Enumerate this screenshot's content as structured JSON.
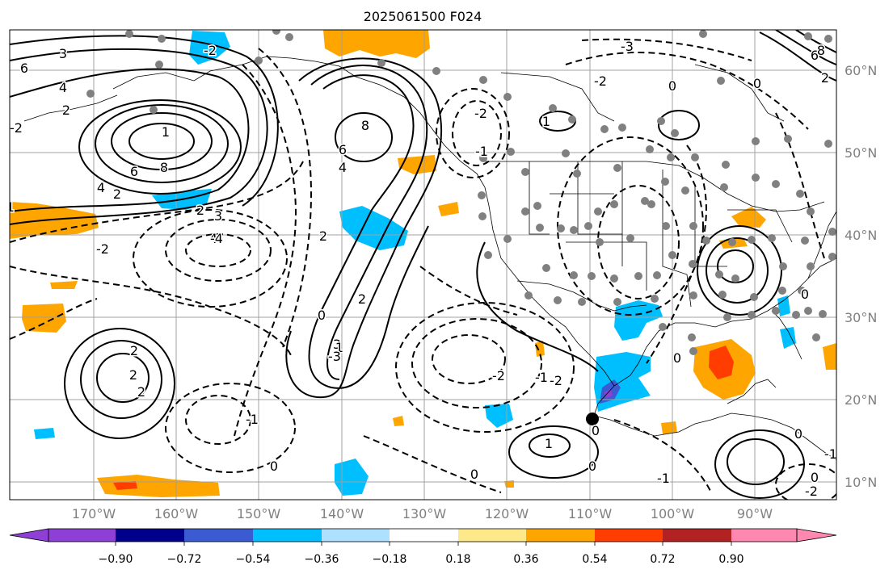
{
  "map": {
    "title": "2025061500 F024",
    "lon_labels": [
      "170°W",
      "160°W",
      "150°W",
      "140°W",
      "130°W",
      "120°W",
      "110°W",
      "100°W",
      "90°W"
    ],
    "lat_labels": [
      "60°N",
      "50°N",
      "40°N",
      "30°N",
      "20°N",
      "10°N"
    ],
    "contour_labels": {
      "pos": [
        "3",
        "6",
        "4",
        "2",
        "1",
        "8",
        "6",
        "4",
        "2",
        "8",
        "6",
        "4",
        "2",
        "2",
        "2",
        "3",
        "1",
        "1",
        "2",
        "2",
        "2",
        "3",
        "4",
        "6",
        "8",
        "2",
        "1"
      ],
      "neg": [
        "-2",
        "-1",
        "-2",
        "-4",
        "-3",
        "-2",
        "-1",
        "0",
        "0",
        "-1",
        "-2",
        "-2",
        "0",
        "0",
        "0",
        "-3",
        "-2",
        "0",
        "0",
        "-1",
        "-1",
        "-2",
        "0",
        "-1",
        "-2",
        "0",
        "0",
        "0"
      ]
    },
    "colors": {
      "neg_strong": "#8e3fd6",
      "navy": "#00008b",
      "blue": "#3a5bd1",
      "cyan": "#00bfff",
      "light_cyan": "#aee0ff",
      "yellow": "#fde88a",
      "orange": "#ffa500",
      "red_orange": "#ff3d00",
      "dark_red": "#b22222",
      "pink": "#ff88b0",
      "station_dot": "#808080"
    }
  },
  "colorbar": {
    "ticks": [
      "−0.90",
      "−0.72",
      "−0.54",
      "−0.36",
      "−0.18",
      "0.18",
      "0.36",
      "0.54",
      "0.72",
      "0.90"
    ]
  }
}
